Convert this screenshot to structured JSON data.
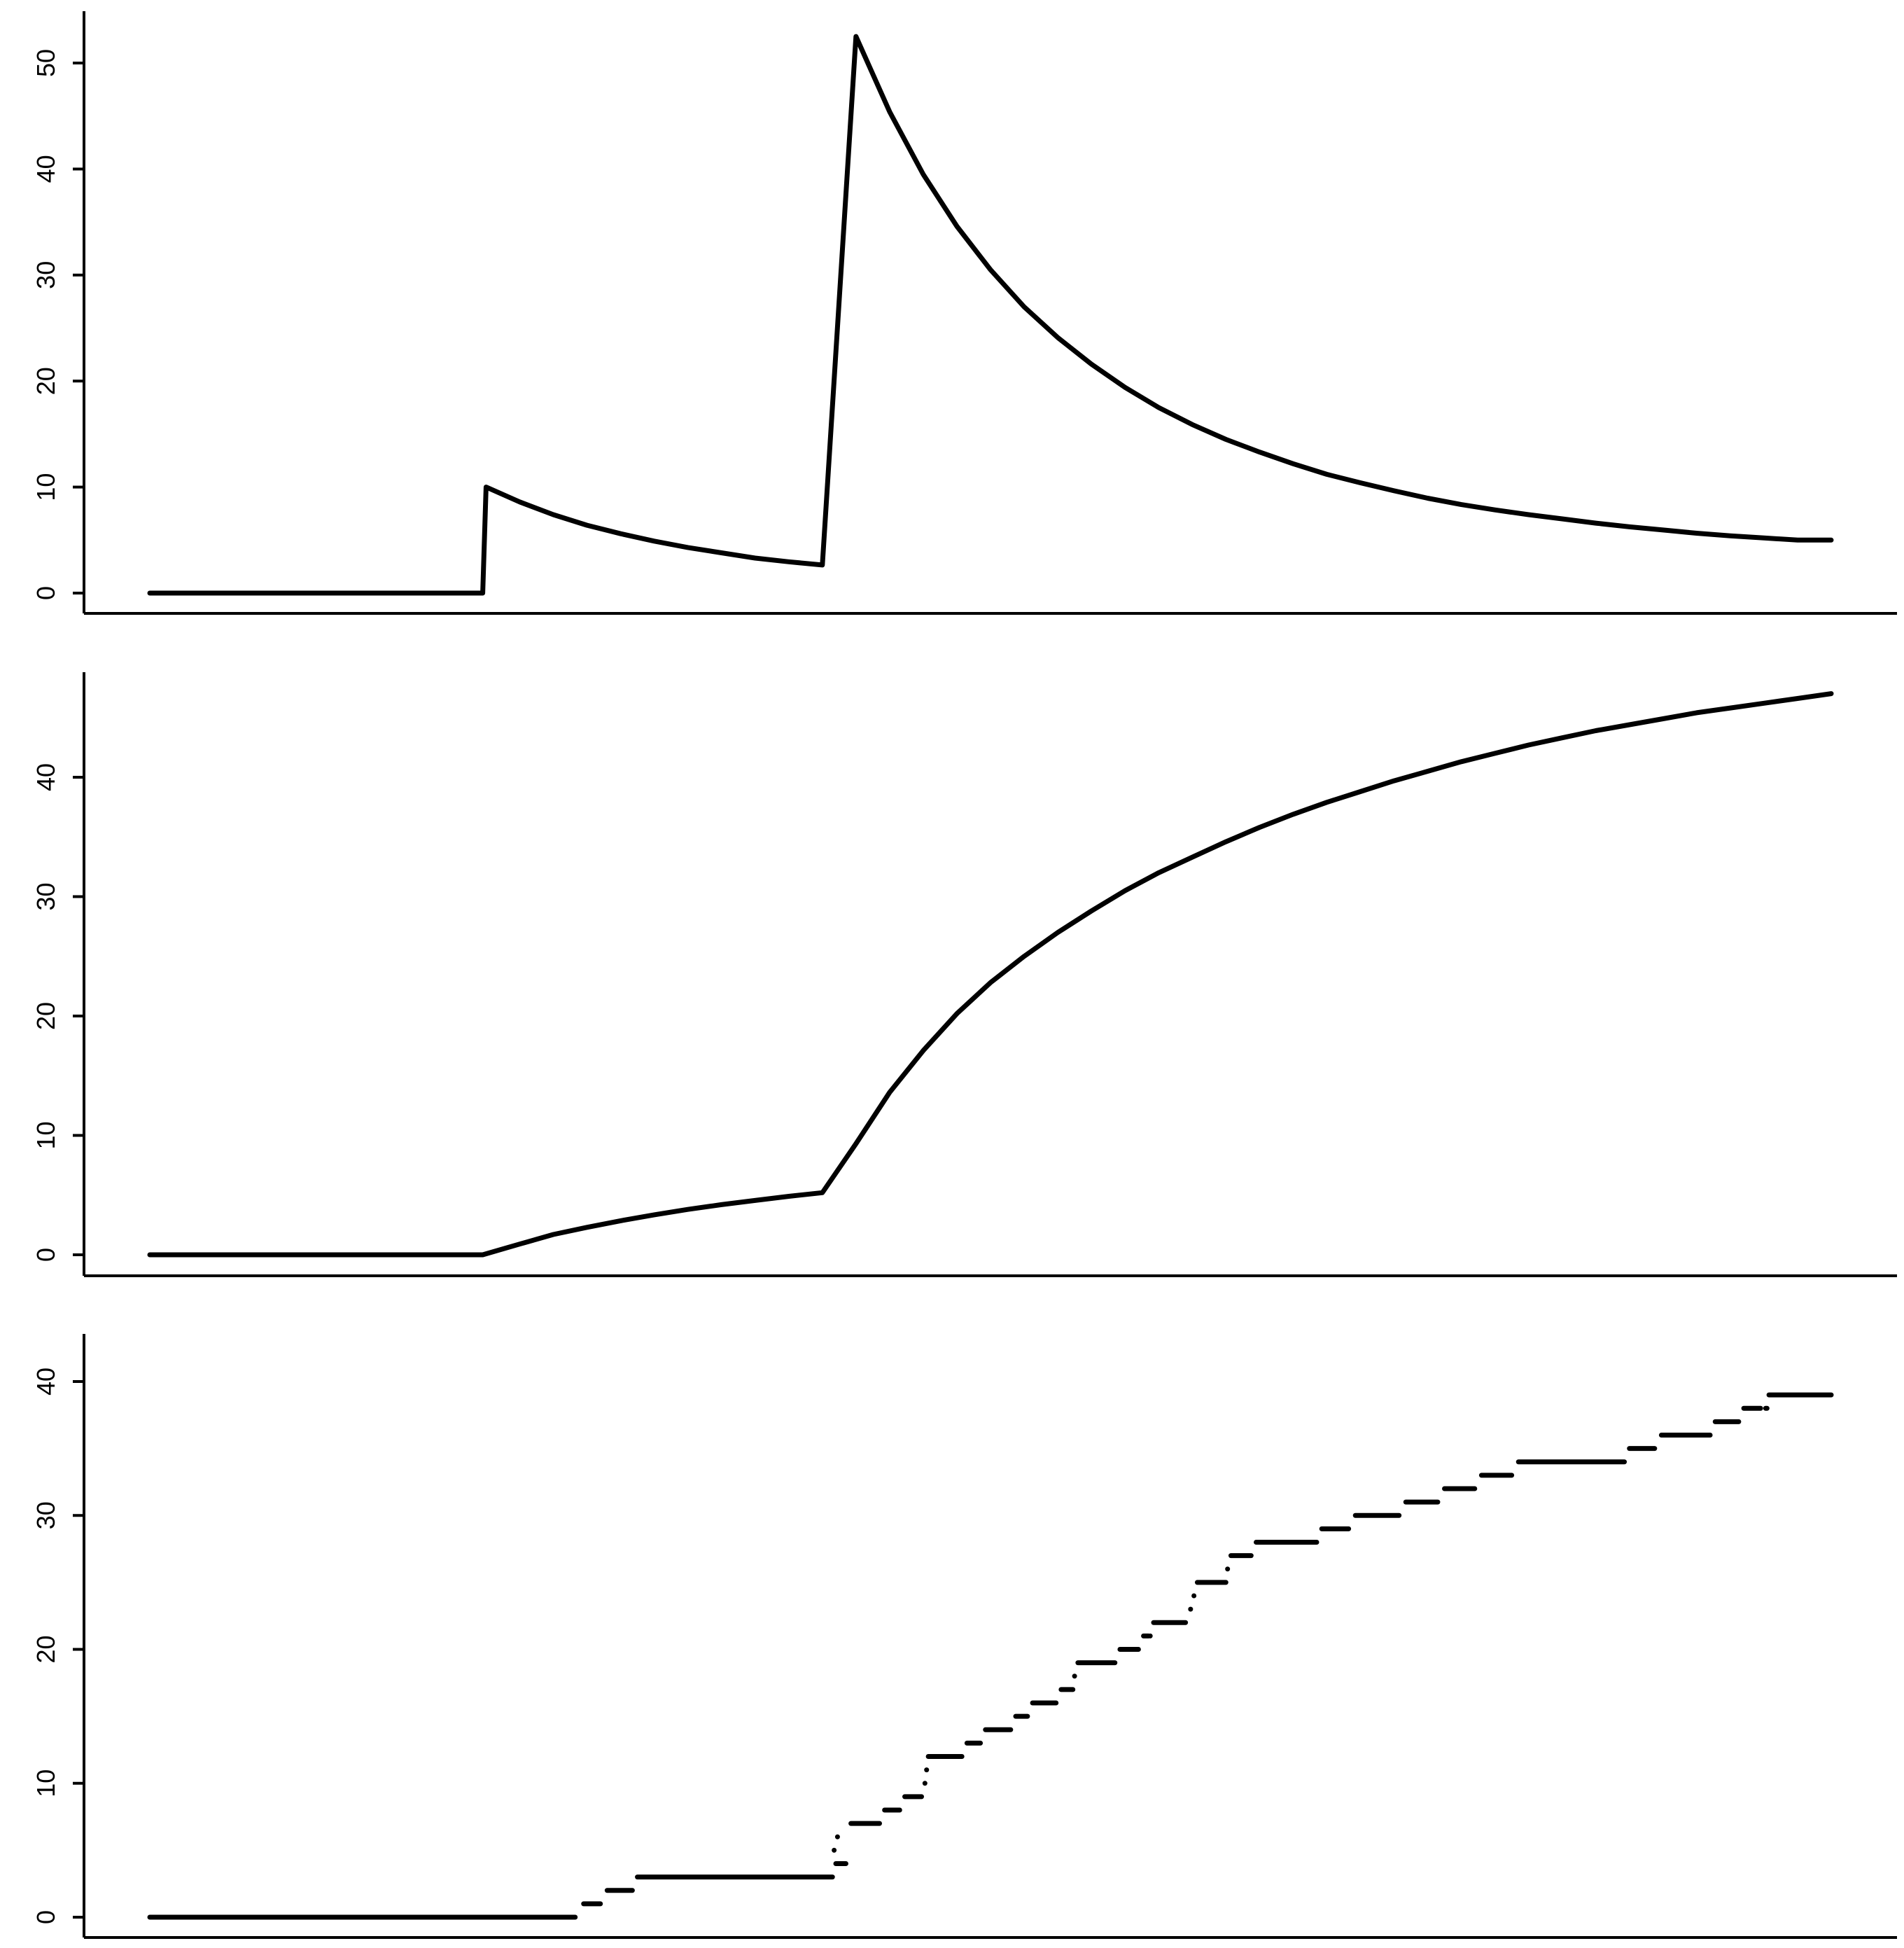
{
  "chart_data": [
    {
      "type": "line",
      "title": "",
      "xlabel": "",
      "ylabel": "",
      "ylim": [
        -2,
        55
      ],
      "yticks": [
        0,
        10,
        20,
        30,
        40,
        50
      ],
      "line_color": "#000000",
      "series": [
        {
          "x": [
            0.0,
            0.198,
            0.2,
            0.22,
            0.24,
            0.26,
            0.28,
            0.3,
            0.32,
            0.34,
            0.36,
            0.38,
            0.4,
            0.42,
            0.44,
            0.46,
            0.48,
            0.5,
            0.52,
            0.54,
            0.56,
            0.58,
            0.6,
            0.62,
            0.64,
            0.66,
            0.68,
            0.7,
            0.72,
            0.74,
            0.76,
            0.78,
            0.8,
            0.82,
            0.84,
            0.86,
            0.88,
            0.9,
            0.92,
            0.94,
            0.96,
            0.98,
            1.0
          ],
          "y": [
            0,
            0,
            10.0,
            8.6,
            7.4,
            6.4,
            5.6,
            4.9,
            4.3,
            3.8,
            3.3,
            2.95,
            2.65,
            52.5,
            45.4,
            39.5,
            34.6,
            30.5,
            27.0,
            24.1,
            21.6,
            19.4,
            17.5,
            15.9,
            14.5,
            13.3,
            12.2,
            11.2,
            10.4,
            9.65,
            8.95,
            8.35,
            7.85,
            7.4,
            7.0,
            6.6,
            6.25,
            5.95,
            5.65,
            5.4,
            5.2,
            5.0,
            5.0
          ]
        }
      ]
    },
    {
      "type": "line",
      "title": "",
      "xlabel": "",
      "ylabel": "",
      "ylim": [
        -2,
        49
      ],
      "yticks": [
        0,
        10,
        20,
        30,
        40
      ],
      "line_color": "#000000",
      "series": [
        {
          "x": [
            0.0,
            0.198,
            0.22,
            0.24,
            0.26,
            0.28,
            0.3,
            0.32,
            0.34,
            0.36,
            0.38,
            0.4,
            0.42,
            0.44,
            0.46,
            0.48,
            0.5,
            0.52,
            0.54,
            0.56,
            0.58,
            0.6,
            0.62,
            0.64,
            0.66,
            0.68,
            0.7,
            0.72,
            0.74,
            0.76,
            0.78,
            0.8,
            0.82,
            0.84,
            0.86,
            0.88,
            0.9,
            0.92,
            0.94,
            0.96,
            0.98,
            1.0
          ],
          "y": [
            0,
            0,
            0.9,
            1.7,
            2.3,
            2.85,
            3.35,
            3.8,
            4.2,
            4.55,
            4.9,
            5.2,
            9.3,
            13.6,
            17.1,
            20.2,
            22.8,
            25.0,
            27.0,
            28.8,
            30.5,
            32.0,
            33.3,
            34.6,
            35.8,
            36.9,
            37.9,
            38.8,
            39.7,
            40.5,
            41.3,
            42.0,
            42.7,
            43.3,
            43.9,
            44.4,
            44.9,
            45.4,
            45.8,
            46.2,
            46.6,
            47.0
          ]
        }
      ]
    },
    {
      "type": "line",
      "title": "",
      "xlabel": "",
      "ylabel": "",
      "ylim": [
        -2,
        43
      ],
      "yticks": [
        0,
        10,
        20,
        30,
        40
      ],
      "line_color": "#000000",
      "steps": [
        {
          "x0": 0.0,
          "x1": 0.253,
          "y": 0
        },
        {
          "x0": 0.258,
          "x1": 0.268,
          "y": 1
        },
        {
          "x0": 0.272,
          "x1": 0.287,
          "y": 2
        },
        {
          "x0": 0.29,
          "x1": 0.406,
          "y": 3
        },
        {
          "x0": 0.408,
          "x1": 0.414,
          "y": 4
        },
        {
          "x0": 0.417,
          "x1": 0.434,
          "y": 7
        },
        {
          "x0": 0.437,
          "x1": 0.446,
          "y": 8
        },
        {
          "x0": 0.449,
          "x1": 0.459,
          "y": 9
        },
        {
          "x0": 0.463,
          "x1": 0.483,
          "y": 12
        },
        {
          "x0": 0.486,
          "x1": 0.494,
          "y": 13
        },
        {
          "x0": 0.497,
          "x1": 0.512,
          "y": 14
        },
        {
          "x0": 0.515,
          "x1": 0.522,
          "y": 15
        },
        {
          "x0": 0.525,
          "x1": 0.539,
          "y": 16
        },
        {
          "x0": 0.542,
          "x1": 0.549,
          "y": 17
        },
        {
          "x0": 0.552,
          "x1": 0.574,
          "y": 19
        },
        {
          "x0": 0.577,
          "x1": 0.588,
          "y": 20
        },
        {
          "x0": 0.591,
          "x1": 0.594,
          "y": 21
        },
        {
          "x0": 0.597,
          "x1": 0.616,
          "y": 22
        },
        {
          "x0": 0.623,
          "x1": 0.64,
          "y": 25
        },
        {
          "x0": 0.643,
          "x1": 0.655,
          "y": 27
        },
        {
          "x0": 0.658,
          "x1": 0.694,
          "y": 28
        },
        {
          "x0": 0.697,
          "x1": 0.713,
          "y": 29
        },
        {
          "x0": 0.717,
          "x1": 0.743,
          "y": 30
        },
        {
          "x0": 0.747,
          "x1": 0.766,
          "y": 31
        },
        {
          "x0": 0.77,
          "x1": 0.788,
          "y": 32
        },
        {
          "x0": 0.792,
          "x1": 0.81,
          "y": 33
        },
        {
          "x0": 0.814,
          "x1": 0.877,
          "y": 34
        },
        {
          "x0": 0.88,
          "x1": 0.895,
          "y": 35
        },
        {
          "x0": 0.899,
          "x1": 0.928,
          "y": 36
        },
        {
          "x0": 0.931,
          "x1": 0.945,
          "y": 37
        },
        {
          "x0": 0.948,
          "x1": 0.958,
          "y": 38
        },
        {
          "x0": 0.961,
          "x1": 0.961,
          "y": 38
        },
        {
          "x0": 0.963,
          "x1": 1.0,
          "y": 39
        }
      ],
      "dots": [
        {
          "x": 0.407,
          "y": 5
        },
        {
          "x": 0.409,
          "y": 6
        },
        {
          "x": 0.461,
          "y": 10
        },
        {
          "x": 0.462,
          "y": 11
        },
        {
          "x": 0.55,
          "y": 18
        },
        {
          "x": 0.595,
          "y": 21
        },
        {
          "x": 0.619,
          "y": 23
        },
        {
          "x": 0.621,
          "y": 24
        },
        {
          "x": 0.641,
          "x2": 0,
          "y": 26
        }
      ]
    }
  ]
}
